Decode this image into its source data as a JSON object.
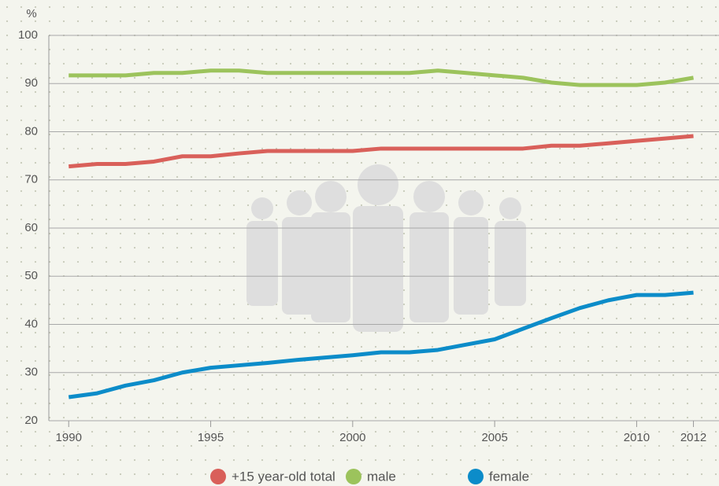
{
  "chart_data": {
    "type": "line",
    "y_label": "%",
    "x": [
      1990,
      1991,
      1992,
      1993,
      1994,
      1995,
      1996,
      1997,
      1998,
      1999,
      2000,
      2001,
      2002,
      2003,
      2004,
      2005,
      2006,
      2007,
      2008,
      2009,
      2010,
      2011,
      2012
    ],
    "series": [
      {
        "name": "+15 year-old total",
        "color": "#d9605a",
        "values": [
          72.8,
          73.3,
          73.3,
          73.8,
          74.9,
          74.9,
          75.5,
          76.0,
          76.0,
          76.0,
          76.0,
          76.5,
          76.5,
          76.5,
          76.5,
          76.5,
          76.5,
          77.1,
          77.1,
          77.6,
          78.1,
          78.6,
          79.1
        ]
      },
      {
        "name": "male",
        "color": "#9cc35c",
        "values": [
          91.7,
          91.7,
          91.7,
          92.2,
          92.2,
          92.7,
          92.7,
          92.2,
          92.2,
          92.2,
          92.2,
          92.2,
          92.2,
          92.7,
          92.2,
          91.7,
          91.2,
          90.2,
          89.7,
          89.7,
          89.7,
          90.2,
          91.2
        ]
      },
      {
        "name": "female",
        "color": "#0c8cc9",
        "values": [
          24.9,
          25.7,
          27.3,
          28.4,
          30.0,
          31.0,
          31.5,
          32.0,
          32.6,
          33.1,
          33.6,
          34.2,
          34.2,
          34.7,
          35.8,
          36.9,
          39.1,
          41.3,
          43.4,
          45.0,
          46.1,
          46.1,
          46.6
        ]
      }
    ],
    "xlim": [
      1989.3,
      2012.9
    ],
    "xticks": [
      1990,
      1995,
      2000,
      2005,
      2010,
      2012
    ],
    "ylim": [
      20,
      100
    ],
    "yticks": [
      20,
      30,
      40,
      50,
      60,
      70,
      80,
      90,
      100
    ],
    "grid": true
  }
}
